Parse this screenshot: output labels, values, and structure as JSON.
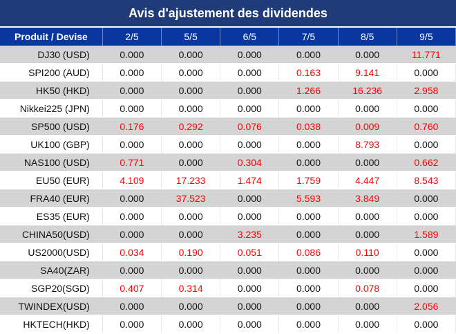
{
  "title": "Avis d'ajustement des dividendes",
  "columns": [
    "Produit / Devise",
    "2/5",
    "5/5",
    "6/5",
    "7/5",
    "8/5",
    "9/5"
  ],
  "colors": {
    "header_bg": "#1f3b78",
    "column_header_bg": "#0a36a0",
    "shade_row": "#d4d4d4",
    "positive_value": "#ff0000",
    "zero_value": "#111111"
  },
  "rows": [
    {
      "product": "DJ30 (USD)",
      "values": [
        "0.000",
        "0.000",
        "0.000",
        "0.000",
        "0.000",
        "11.771"
      ]
    },
    {
      "product": "SPI200 (AUD)",
      "values": [
        "0.000",
        "0.000",
        "0.000",
        "0.163",
        "9.141",
        "0.000"
      ]
    },
    {
      "product": "HK50 (HKD)",
      "values": [
        "0.000",
        "0.000",
        "0.000",
        "1.266",
        "16.236",
        "2.958"
      ]
    },
    {
      "product": "Nikkei225 (JPN)",
      "values": [
        "0.000",
        "0.000",
        "0.000",
        "0.000",
        "0.000",
        "0.000"
      ]
    },
    {
      "product": "SP500 (USD)",
      "values": [
        "0.176",
        "0.292",
        "0.076",
        "0.038",
        "0.009",
        "0.760"
      ]
    },
    {
      "product": "UK100 (GBP)",
      "values": [
        "0.000",
        "0.000",
        "0.000",
        "0.000",
        "8.793",
        "0.000"
      ]
    },
    {
      "product": "NAS100 (USD)",
      "values": [
        "0.771",
        "0.000",
        "0.304",
        "0.000",
        "0.000",
        "0.662"
      ]
    },
    {
      "product": "EU50 (EUR)",
      "values": [
        "4.109",
        "17.233",
        "1.474",
        "1.759",
        "4.447",
        "8.543"
      ]
    },
    {
      "product": "FRA40 (EUR)",
      "values": [
        "0.000",
        "37.523",
        "0.000",
        "5.593",
        "3.849",
        "0.000"
      ]
    },
    {
      "product": "ES35 (EUR)",
      "values": [
        "0.000",
        "0.000",
        "0.000",
        "0.000",
        "0.000",
        "0.000"
      ]
    },
    {
      "product": "CHINA50(USD)",
      "values": [
        "0.000",
        "0.000",
        "3.235",
        "0.000",
        "0.000",
        "1.589"
      ]
    },
    {
      "product": "US2000(USD)",
      "values": [
        "0.034",
        "0.190",
        "0.051",
        "0.086",
        "0.110",
        "0.000"
      ]
    },
    {
      "product": "SA40(ZAR)",
      "values": [
        "0.000",
        "0.000",
        "0.000",
        "0.000",
        "0.000",
        "0.000"
      ]
    },
    {
      "product": "SGP20(SGD)",
      "values": [
        "0.407",
        "0.314",
        "0.000",
        "0.000",
        "0.078",
        "0.000"
      ]
    },
    {
      "product": "TWINDEX(USD)",
      "values": [
        "0.000",
        "0.000",
        "0.000",
        "0.000",
        "0.000",
        "2.056"
      ]
    },
    {
      "product": "HKTECH(HKD)",
      "values": [
        "0.000",
        "0.000",
        "0.000",
        "0.000",
        "0.000",
        "0.000"
      ]
    }
  ]
}
